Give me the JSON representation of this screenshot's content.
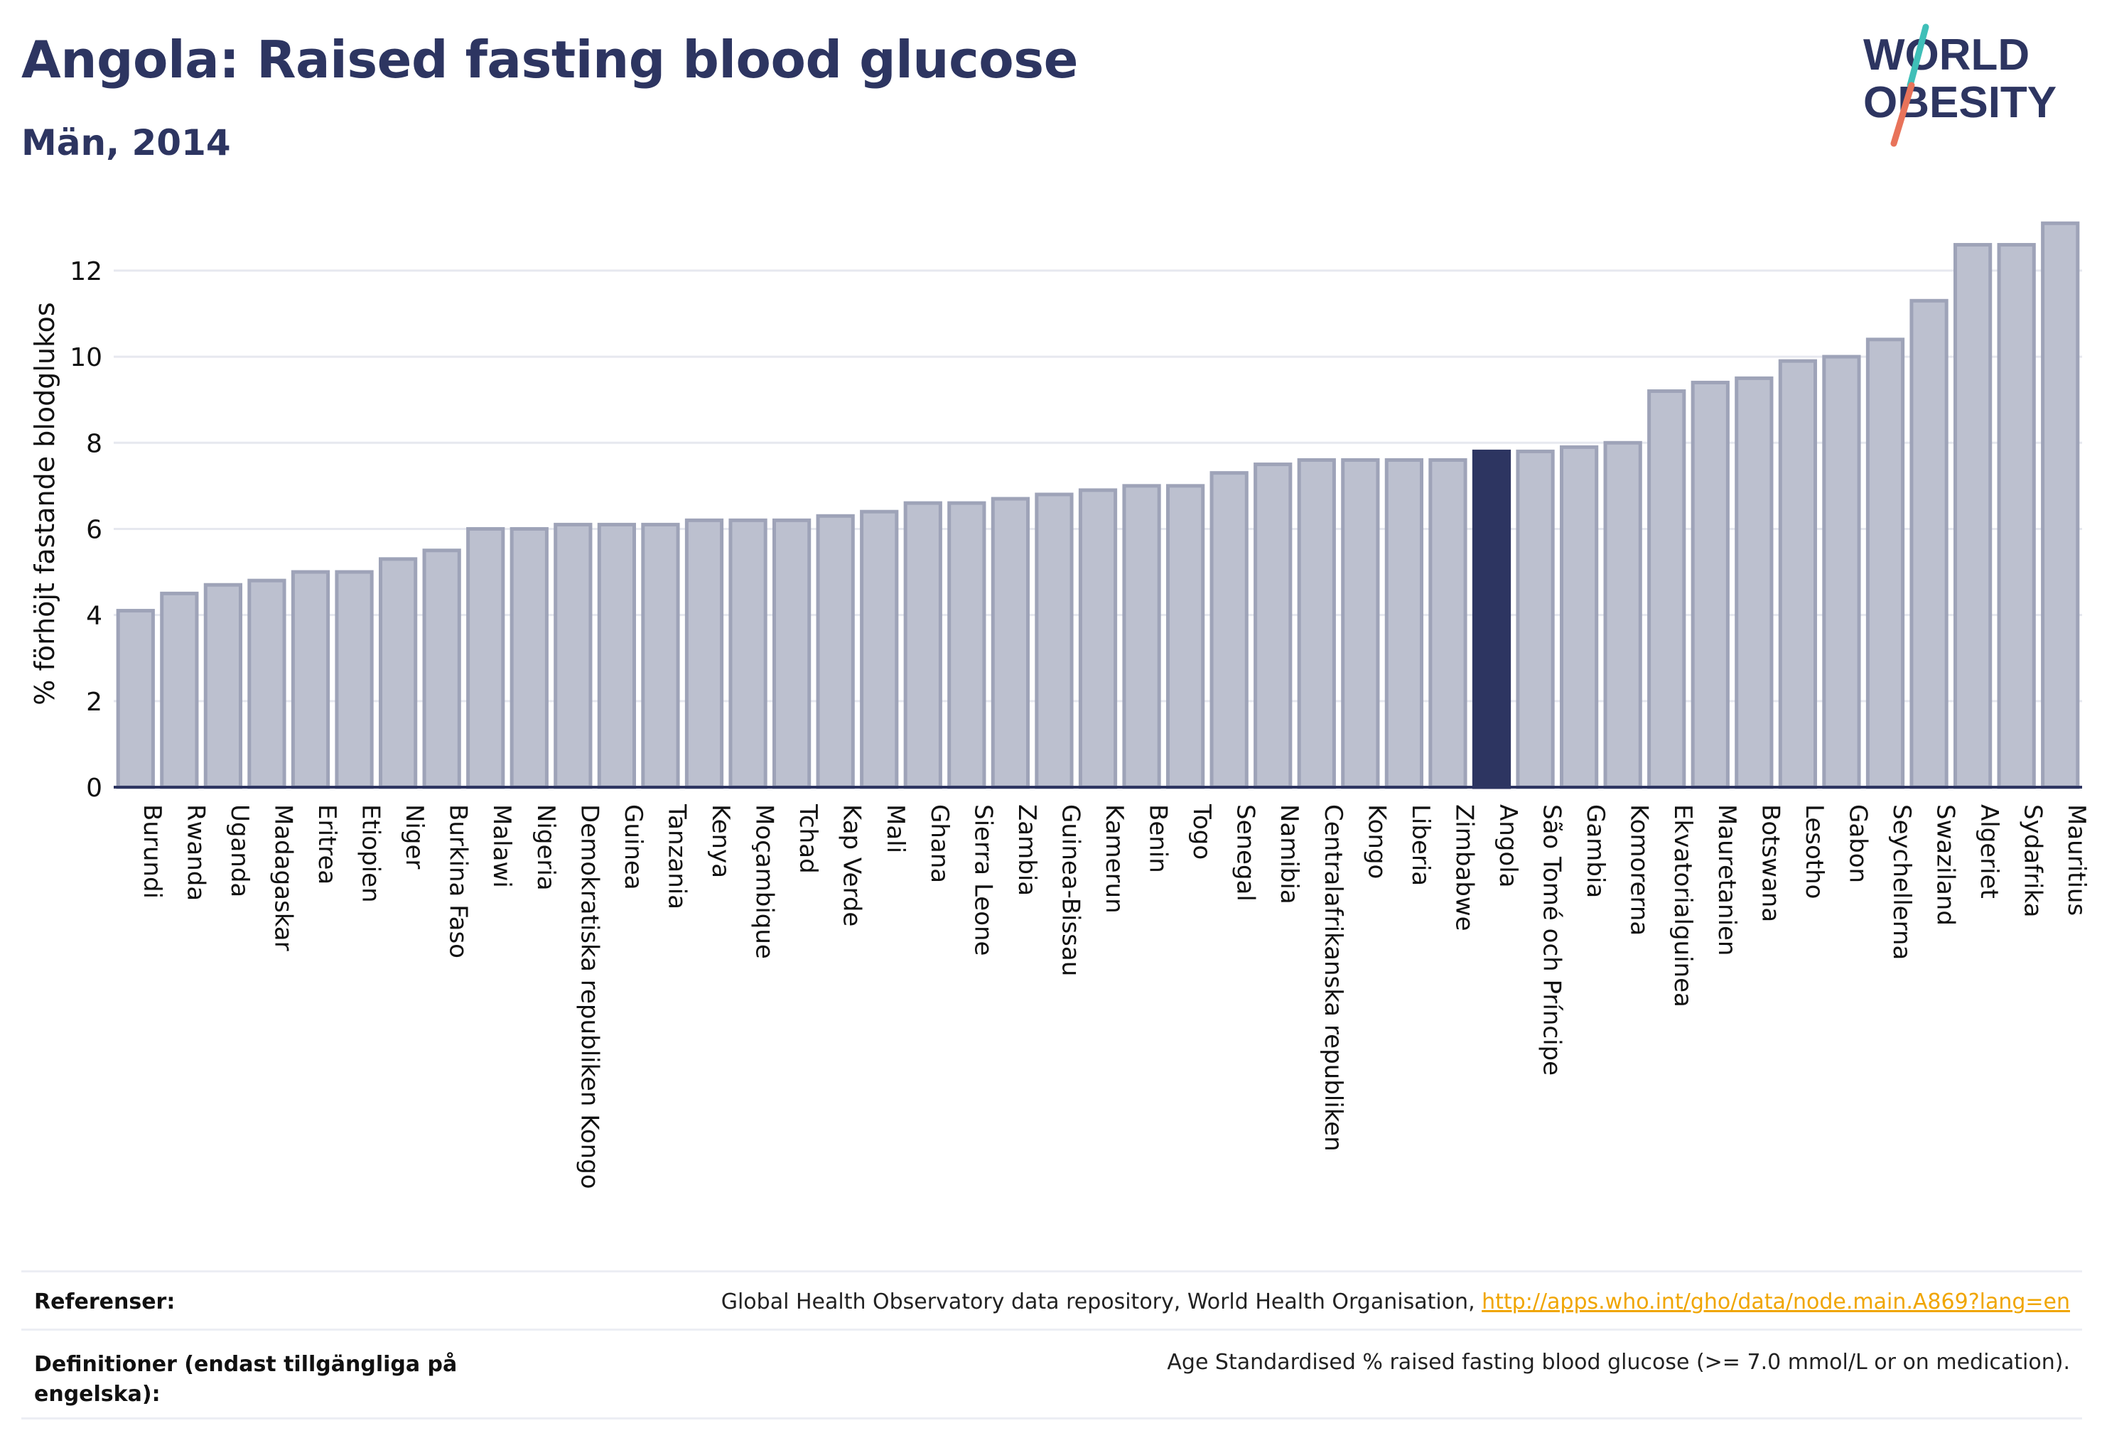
{
  "header": {
    "title": "Angola: Raised fasting blood glucose",
    "subtitle": "Män, 2014"
  },
  "logo": {
    "line1": "WORLD",
    "line2": "OBESITY",
    "colors": {
      "text": "#2d3561",
      "slash_teal": "#3fbfb8",
      "slash_coral": "#e8735a"
    }
  },
  "footer": {
    "references_label": "Referenser:",
    "references_text": "Global Health Observatory data repository, World Health Organisation, ",
    "references_link": "http://apps.who.int/gho/data/node.main.A869?lang=en",
    "definitions_label": "Definitioner (endast tillgängliga på engelska):",
    "definitions_text": "Age Standardised % raised fasting blood glucose (>= 7.0 mmol/L or on medication)."
  },
  "colors": {
    "bar": "#bcc0cf",
    "bar_border": "#9ea3b8",
    "highlight": "#2d3561",
    "grid": "#e6e8ef",
    "axis": "#2d3561"
  },
  "chart_data": {
    "type": "bar",
    "title": "Angola: Raised fasting blood glucose",
    "subtitle": "Män, 2014",
    "xlabel": "",
    "ylabel": "% förhöjt fastande blodglukos",
    "ylim": [
      0,
      13.5
    ],
    "yticks": [
      0,
      2,
      4,
      6,
      8,
      10,
      12
    ],
    "grid": true,
    "highlight": "Angola",
    "categories": [
      "Burundi",
      "Rwanda",
      "Uganda",
      "Madagaskar",
      "Eritrea",
      "Etiopien",
      "Niger",
      "Burkina Faso",
      "Malawi",
      "Nigeria",
      "Demokratiska republiken Kongo",
      "Guinea",
      "Tanzania",
      "Kenya",
      "Moçambique",
      "Tchad",
      "Kap Verde",
      "Mali",
      "Ghana",
      "Sierra Leone",
      "Zambia",
      "Guinea-Bissau",
      "Kamerun",
      "Benin",
      "Togo",
      "Senegal",
      "Namibia",
      "Centralafrikanska republiken",
      "Kongo",
      "Liberia",
      "Zimbabwe",
      "Angola",
      "São Tomé och Príncipe",
      "Gambia",
      "Komorerna",
      "Ekvatorialguinea",
      "Mauretanien",
      "Botswana",
      "Lesotho",
      "Gabon",
      "Seychellerna",
      "Swaziland",
      "Algeriet",
      "Sydafrika",
      "Mauritius"
    ],
    "values": [
      4.1,
      4.5,
      4.7,
      4.8,
      5.0,
      5.0,
      5.3,
      5.5,
      6.0,
      6.0,
      6.1,
      6.1,
      6.1,
      6.2,
      6.2,
      6.2,
      6.3,
      6.4,
      6.6,
      6.6,
      6.7,
      6.8,
      6.9,
      7.0,
      7.0,
      7.3,
      7.5,
      7.6,
      7.6,
      7.6,
      7.6,
      7.8,
      7.8,
      7.9,
      8.0,
      9.2,
      9.4,
      9.5,
      9.9,
      10.0,
      10.4,
      11.3,
      12.6,
      12.6,
      13.1
    ]
  }
}
